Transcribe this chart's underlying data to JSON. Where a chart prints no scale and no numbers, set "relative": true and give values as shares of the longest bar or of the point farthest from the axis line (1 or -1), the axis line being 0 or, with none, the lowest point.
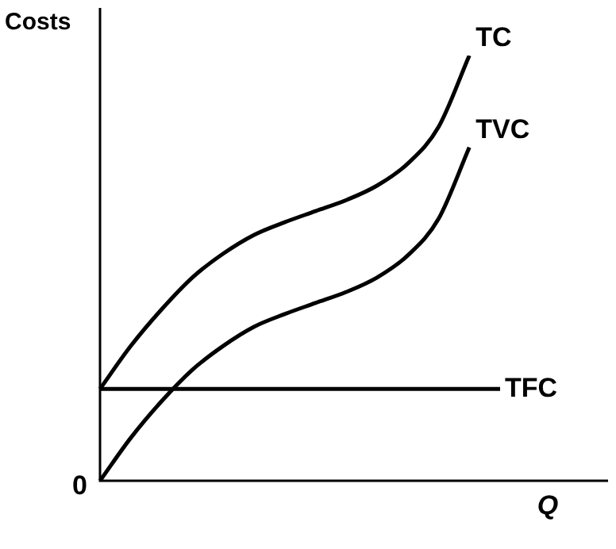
{
  "chart_data": {
    "type": "line",
    "relative": true,
    "ylabel": "Costs",
    "xlabel": "Q",
    "annotations": [
      "0"
    ],
    "legend": false,
    "marker": "none",
    "categories": [
      null,
      null,
      null,
      null,
      null,
      null,
      null,
      null,
      null,
      null,
      null,
      null,
      null,
      null
    ],
    "series": [
      {
        "name": "TC",
        "color": "#000000",
        "values": [
          0.216,
          0.317,
          0.403,
          0.478,
          0.534,
          0.578,
          0.608,
          0.634,
          0.66,
          0.694,
          0.746,
          0.832,
          1,
          null
        ]
      },
      {
        "name": "TVC",
        "color": "#000000",
        "values": [
          0,
          0.101,
          0.187,
          0.261,
          0.317,
          0.362,
          0.392,
          0.418,
          0.444,
          0.478,
          0.53,
          0.616,
          0.784,
          null
        ]
      },
      {
        "name": "TFC",
        "color": "#000000",
        "values": [
          0.216,
          0.216,
          0.216,
          0.216,
          0.216,
          0.216,
          0.216,
          0.216,
          0.216,
          0.216,
          0.216,
          0.216,
          0.216,
          0.216
        ]
      }
    ]
  }
}
